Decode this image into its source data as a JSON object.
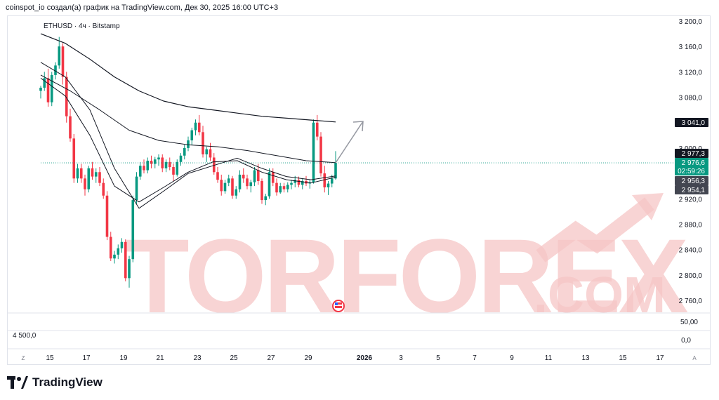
{
  "header": {
    "caption": "coinspot_io создал(а) график на TradingView.com, Дек 30, 2025 16:00 UTC+3"
  },
  "chart": {
    "symbol_label": "ETHUSD · 4ч · Bitstamp"
  },
  "watermark": {
    "text_main": "TORFOREX",
    "text_suffix": ".COM"
  },
  "footer": {
    "brand": "TradingView"
  },
  "colors": {
    "up": "#089981",
    "down": "#f23645",
    "ma": "#131722",
    "arrow": "#9598a1",
    "watermark": "#f7c9c9"
  },
  "chart_data": {
    "type": "candlestick",
    "price_axis": {
      "ticks": [
        "3 200,0",
        "3 160,0",
        "3 120,0",
        "3 080,0",
        "3 000,0",
        "2 920,0",
        "2 880,0",
        "2 840,0",
        "2 800,0",
        "2 760,0"
      ],
      "range": [
        2750,
        3210
      ]
    },
    "price_labels": [
      {
        "text": "3 041,0",
        "value": 3041.0,
        "style": "dark"
      },
      {
        "text": "2 977,3",
        "value": 2977.3,
        "style": "dark"
      },
      {
        "text": "2 976,6",
        "value": 2976.6,
        "style": "last"
      },
      {
        "text": "02:59:26",
        "value": 2966.0,
        "style": "last"
      },
      {
        "text": "2 956,3",
        "value": 2956.3,
        "style": "gray"
      },
      {
        "text": "2 954,1",
        "value": 2954.1,
        "style": "gray"
      }
    ],
    "volume_axis": {
      "ticks": [
        "50,00",
        "0,0"
      ],
      "left_label": "4 500,0"
    },
    "time_axis": [
      "Z",
      "15",
      "17",
      "19",
      "21",
      "23",
      "25",
      "27",
      "29",
      "2026",
      "3",
      "5",
      "7",
      "9",
      "11",
      "13",
      "15",
      "17",
      "A"
    ],
    "last_price": 2976.6,
    "candles_4h_approx": [
      [
        3090,
        3098,
        3078,
        3095
      ],
      [
        3095,
        3120,
        3090,
        3110
      ],
      [
        3110,
        3125,
        3065,
        3072
      ],
      [
        3072,
        3120,
        3066,
        3115
      ],
      [
        3115,
        3135,
        3108,
        3130
      ],
      [
        3130,
        3175,
        3125,
        3160
      ],
      [
        3160,
        3165,
        3100,
        3112
      ],
      [
        3112,
        3120,
        3040,
        3050
      ],
      [
        3050,
        3062,
        3010,
        3015
      ],
      [
        3015,
        3022,
        2945,
        2952
      ],
      [
        2952,
        2975,
        2945,
        2968
      ],
      [
        2968,
        2975,
        2945,
        2952
      ],
      [
        2952,
        2958,
        2925,
        2935
      ],
      [
        2935,
        2972,
        2930,
        2968
      ],
      [
        2968,
        2978,
        2950,
        2955
      ],
      [
        2955,
        2968,
        2945,
        2962
      ],
      [
        2962,
        2970,
        2940,
        2945
      ],
      [
        2945,
        2952,
        2920,
        2925
      ],
      [
        2925,
        2932,
        2855,
        2860
      ],
      [
        2860,
        2868,
        2822,
        2826
      ],
      [
        2826,
        2838,
        2818,
        2832
      ],
      [
        2832,
        2848,
        2825,
        2842
      ],
      [
        2842,
        2858,
        2835,
        2852
      ],
      [
        2852,
        2856,
        2790,
        2795
      ],
      [
        2795,
        2830,
        2780,
        2825
      ],
      [
        2825,
        2925,
        2820,
        2918
      ],
      [
        2918,
        2962,
        2912,
        2955
      ],
      [
        2955,
        2978,
        2950,
        2972
      ],
      [
        2972,
        2982,
        2960,
        2965
      ],
      [
        2965,
        2985,
        2960,
        2980
      ],
      [
        2980,
        2988,
        2968,
        2975
      ],
      [
        2975,
        2986,
        2968,
        2982
      ],
      [
        2982,
        2990,
        2972,
        2985
      ],
      [
        2985,
        2990,
        2962,
        2968
      ],
      [
        2968,
        2982,
        2962,
        2978
      ],
      [
        2978,
        2985,
        2965,
        2970
      ],
      [
        2970,
        2975,
        2948,
        2958
      ],
      [
        2958,
        2982,
        2955,
        2978
      ],
      [
        2978,
        2992,
        2972,
        2988
      ],
      [
        2988,
        3005,
        2982,
        3000
      ],
      [
        3000,
        3018,
        2995,
        3012
      ],
      [
        3012,
        3032,
        3005,
        3028
      ],
      [
        3028,
        3045,
        3020,
        3040
      ],
      [
        3040,
        3052,
        3020,
        3025
      ],
      [
        3025,
        3035,
        2985,
        2990
      ],
      [
        2990,
        3002,
        2978,
        2998
      ],
      [
        2998,
        3008,
        2980,
        2985
      ],
      [
        2985,
        2992,
        2958,
        2962
      ],
      [
        2962,
        2970,
        2945,
        2950
      ],
      [
        2950,
        2958,
        2925,
        2932
      ],
      [
        2932,
        2950,
        2928,
        2945
      ],
      [
        2945,
        2958,
        2940,
        2952
      ],
      [
        2952,
        2956,
        2920,
        2925
      ],
      [
        2925,
        2940,
        2920,
        2935
      ],
      [
        2935,
        2965,
        2930,
        2958
      ],
      [
        2958,
        2968,
        2945,
        2952
      ],
      [
        2952,
        2958,
        2935,
        2940
      ],
      [
        2940,
        2950,
        2930,
        2946
      ],
      [
        2946,
        2970,
        2940,
        2965
      ],
      [
        2965,
        2975,
        2942,
        2948
      ],
      [
        2948,
        2952,
        2912,
        2918
      ],
      [
        2918,
        2928,
        2910,
        2924
      ],
      [
        2924,
        2968,
        2920,
        2962
      ],
      [
        2962,
        2968,
        2940,
        2945
      ],
      [
        2945,
        2952,
        2925,
        2930
      ],
      [
        2930,
        2945,
        2928,
        2940
      ],
      [
        2940,
        2945,
        2930,
        2935
      ],
      [
        2935,
        2946,
        2930,
        2942
      ],
      [
        2942,
        2950,
        2935,
        2945
      ],
      [
        2945,
        2956,
        2938,
        2950
      ],
      [
        2950,
        2955,
        2938,
        2942
      ],
      [
        2942,
        2952,
        2935,
        2948
      ],
      [
        2948,
        2956,
        2940,
        2944
      ],
      [
        2944,
        2950,
        2936,
        2946
      ],
      [
        2946,
        3045,
        2944,
        3040
      ],
      [
        3040,
        3052,
        3012,
        3018
      ],
      [
        3018,
        3025,
        2955,
        2960
      ],
      [
        2960,
        2972,
        2930,
        2938
      ],
      [
        2938,
        2948,
        2926,
        2944
      ],
      [
        2944,
        2958,
        2938,
        2952
      ],
      [
        2952,
        2995,
        2950,
        2976.6
      ]
    ],
    "ma_slow_approx": [
      3180,
      3165,
      3140,
      3112,
      3090,
      3074,
      3065,
      3060,
      3055,
      3050,
      3047,
      3044,
      3041
    ],
    "ma_mid_approx": [
      3115,
      3090,
      3060,
      3028,
      3012,
      3005,
      3002,
      2996,
      2988,
      2980,
      2977
    ],
    "ma_fast_approx": [
      3135,
      3112,
      3060,
      2968,
      2905,
      2932,
      2960,
      2972,
      2984,
      2968,
      2955,
      2950,
      2956
    ],
    "ma_fast2_approx": [
      3110,
      3082,
      3020,
      2940,
      2915,
      2938,
      2962,
      2978,
      2980,
      2962,
      2950,
      2945,
      2954
    ]
  }
}
